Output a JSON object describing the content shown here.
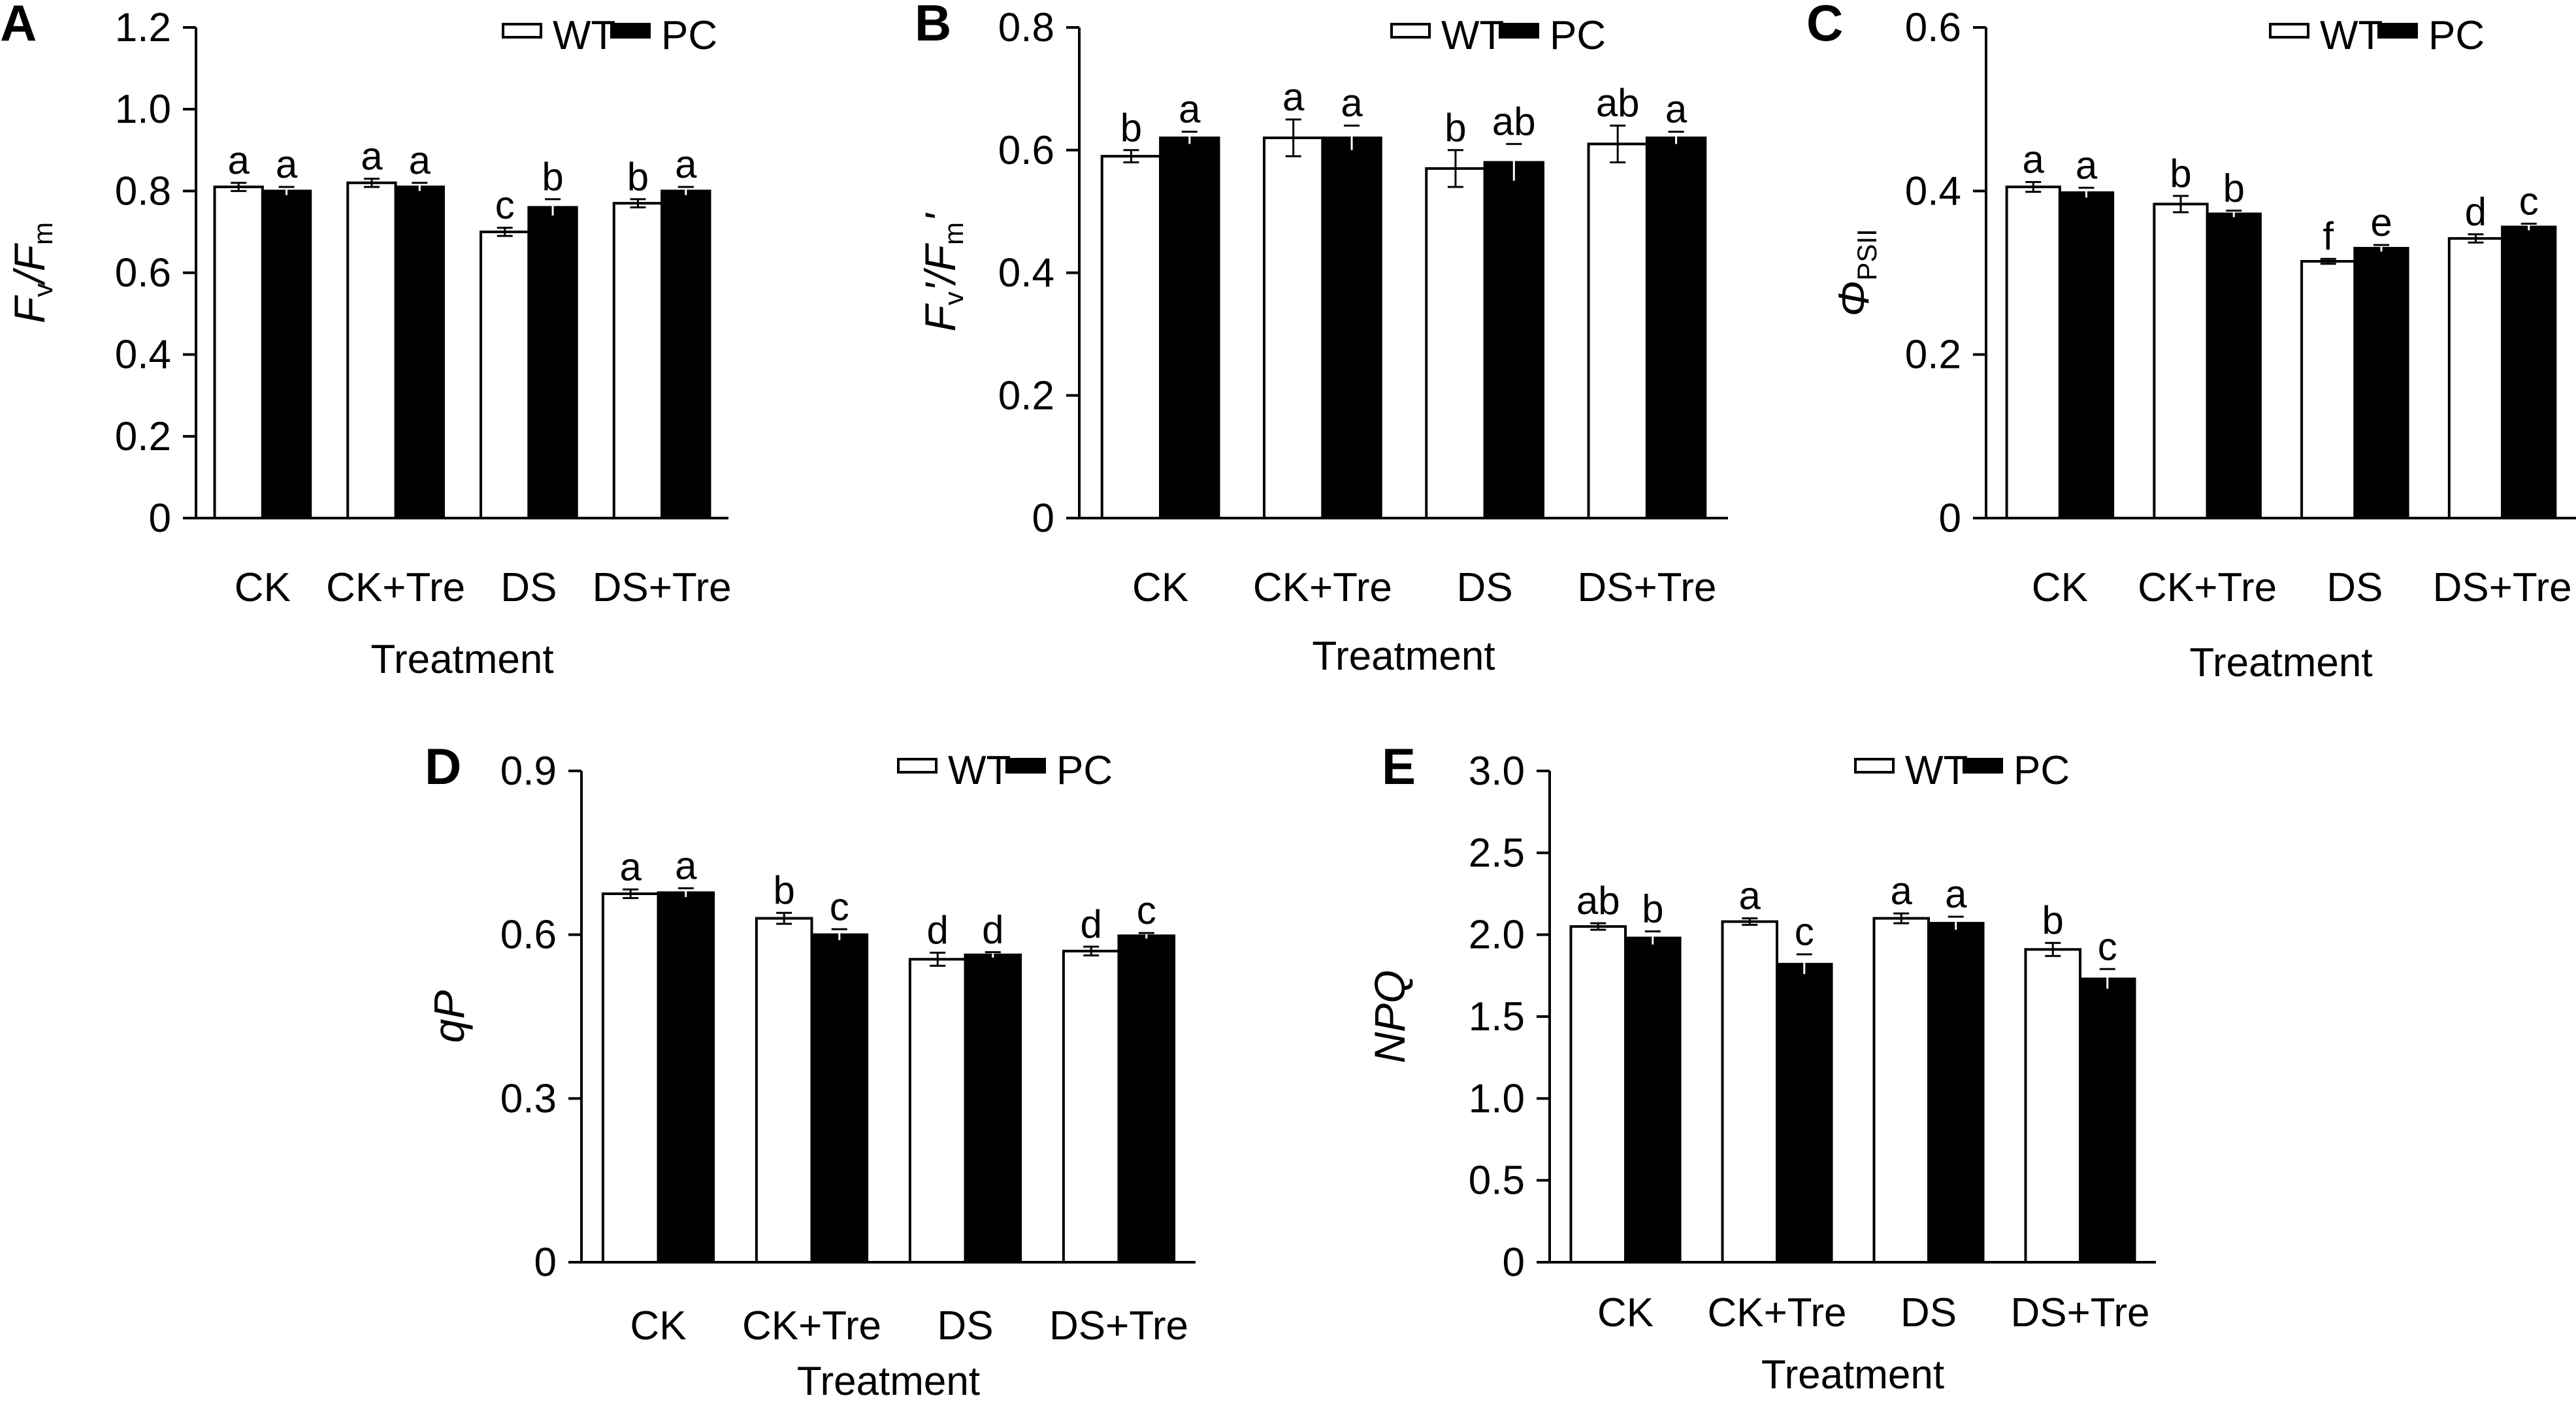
{
  "chart_data": [
    {
      "panel": "A",
      "type": "bar",
      "categories": [
        "CK",
        "CK+Tre",
        "DS",
        "DS+Tre"
      ],
      "series": [
        {
          "name": "WT",
          "color": "#ffffff",
          "values": [
            0.81,
            0.82,
            0.7,
            0.77
          ],
          "errors": [
            0.01,
            0.01,
            0.01,
            0.01
          ],
          "labels": [
            "a",
            "a",
            "c",
            "b"
          ]
        },
        {
          "name": "PC",
          "color": "#000000",
          "values": [
            0.8,
            0.81,
            0.76,
            0.8
          ],
          "errors": [
            0.01,
            0.01,
            0.02,
            0.01
          ],
          "labels": [
            "a",
            "a",
            "b",
            "a"
          ]
        }
      ],
      "xlabel": "Treatment",
      "ylabel": {
        "main": "F",
        "sub1": "v",
        "sep": "/F",
        "sub2": "m"
      },
      "ylim": [
        0,
        1.2
      ],
      "yticks": [
        "0",
        "0.2",
        "0.4",
        "0.6",
        "0.8",
        "1.0",
        "1.2"
      ],
      "legend": "top-right"
    },
    {
      "panel": "B",
      "type": "bar",
      "categories": [
        "CK",
        "CK+Tre",
        "DS",
        "DS+Tre"
      ],
      "series": [
        {
          "name": "WT",
          "color": "#ffffff",
          "values": [
            0.59,
            0.62,
            0.57,
            0.61
          ],
          "errors": [
            0.01,
            0.03,
            0.03,
            0.03
          ],
          "labels": [
            "b",
            "a",
            "b",
            "ab"
          ]
        },
        {
          "name": "PC",
          "color": "#000000",
          "values": [
            0.62,
            0.62,
            0.58,
            0.62
          ],
          "errors": [
            0.01,
            0.02,
            0.03,
            0.01
          ],
          "labels": [
            "a",
            "a",
            "ab",
            "a"
          ]
        }
      ],
      "xlabel": "Treatment",
      "ylabel": {
        "main": "F",
        "sub1": "v",
        "sep": "'/F",
        "sub2": "m",
        "end": "'"
      },
      "ylim": [
        0,
        0.8
      ],
      "yticks": [
        "0",
        "0.2",
        "0.4",
        "0.6",
        "0.8"
      ],
      "legend": "top-right"
    },
    {
      "panel": "C",
      "type": "bar",
      "categories": [
        "CK",
        "CK+Tre",
        "DS",
        "DS+Tre"
      ],
      "series": [
        {
          "name": "WT",
          "color": "#ffffff",
          "values": [
            0.405,
            0.384,
            0.314,
            0.342
          ],
          "errors": [
            0.006,
            0.01,
            0.003,
            0.005
          ],
          "labels": [
            "a",
            "b",
            "f",
            "d"
          ]
        },
        {
          "name": "PC",
          "color": "#000000",
          "values": [
            0.398,
            0.372,
            0.33,
            0.356
          ],
          "errors": [
            0.006,
            0.004,
            0.004,
            0.004
          ],
          "labels": [
            "a",
            "b",
            "e",
            "c"
          ]
        }
      ],
      "xlabel": "Treatment",
      "ylabel": {
        "main": "Φ",
        "sub1": "PSII"
      },
      "ylim": [
        0,
        0.6
      ],
      "yticks": [
        "0",
        "0.2",
        "0.4",
        "0.6"
      ],
      "legend": "top-right"
    },
    {
      "panel": "D",
      "type": "bar",
      "categories": [
        "CK",
        "CK+Tre",
        "DS",
        "DS+Tre"
      ],
      "series": [
        {
          "name": "WT",
          "color": "#ffffff",
          "values": [
            0.675,
            0.63,
            0.555,
            0.57
          ],
          "errors": [
            0.008,
            0.01,
            0.012,
            0.008
          ],
          "labels": [
            "a",
            "b",
            "d",
            "d"
          ]
        },
        {
          "name": "PC",
          "color": "#000000",
          "values": [
            0.677,
            0.6,
            0.563,
            0.598
          ],
          "errors": [
            0.008,
            0.01,
            0.005,
            0.005
          ],
          "labels": [
            "a",
            "c",
            "d",
            "c"
          ]
        }
      ],
      "xlabel": "Treatment",
      "ylabel": {
        "main": "qP"
      },
      "ylim": [
        0,
        0.9
      ],
      "yticks": [
        "0",
        "0.3",
        "0.6",
        "0.9"
      ],
      "legend": "top-right"
    },
    {
      "panel": "E",
      "type": "bar",
      "categories": [
        "CK",
        "CK+Tre",
        "DS",
        "DS+Tre"
      ],
      "series": [
        {
          "name": "WT",
          "color": "#ffffff",
          "values": [
            2.05,
            2.08,
            2.1,
            1.91
          ],
          "errors": [
            0.02,
            0.02,
            0.03,
            0.04
          ],
          "labels": [
            "ab",
            "a",
            "a",
            "b"
          ]
        },
        {
          "name": "PC",
          "color": "#000000",
          "values": [
            1.98,
            1.82,
            2.07,
            1.73
          ],
          "errors": [
            0.04,
            0.06,
            0.04,
            0.06
          ],
          "labels": [
            "b",
            "c",
            "a",
            "c"
          ]
        }
      ],
      "xlabel": "Treatment",
      "ylabel": {
        "main": "NPQ"
      },
      "ylim": [
        0,
        3.0
      ],
      "yticks": [
        "0",
        "0.5",
        "1.0",
        "1.5",
        "2.0",
        "2.5",
        "3.0"
      ],
      "legend": "top-right"
    }
  ]
}
